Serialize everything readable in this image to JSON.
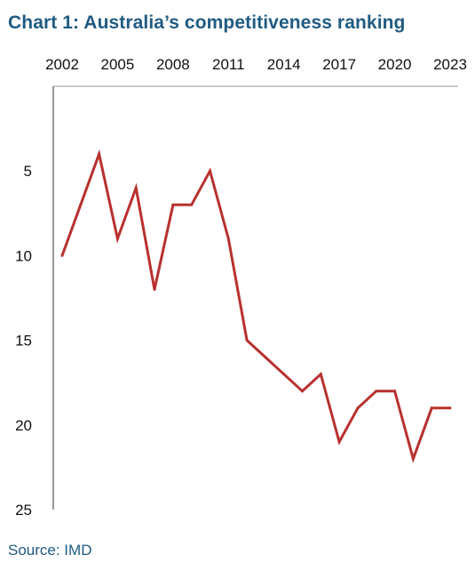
{
  "chart_data": {
    "type": "line",
    "title": "Chart 1: Australia’s competitiveness ranking",
    "source": "Source: IMD",
    "xlabel": "",
    "ylabel": "",
    "x_axis_position": "top",
    "y_axis_inverted": true,
    "xlim": [
      2002,
      2023
    ],
    "ylim": [
      0,
      25
    ],
    "x_ticks": [
      2002,
      2005,
      2008,
      2011,
      2014,
      2017,
      2020,
      2023
    ],
    "y_ticks": [
      5,
      10,
      15,
      20,
      25
    ],
    "grid": false,
    "line_color": "#b8312f",
    "series": [
      {
        "x": [
          2002,
          2003,
          2004,
          2005,
          2006,
          2007,
          2008,
          2009,
          2010,
          2011,
          2012,
          2013,
          2014,
          2015,
          2016,
          2017,
          2018,
          2019,
          2020,
          2021,
          2022,
          2023
        ],
        "values": [
          10,
          7,
          4,
          9,
          6,
          12,
          7,
          7,
          5,
          9,
          15,
          16,
          17,
          18,
          17,
          21,
          19,
          18,
          18,
          22,
          19,
          19
        ]
      }
    ]
  }
}
